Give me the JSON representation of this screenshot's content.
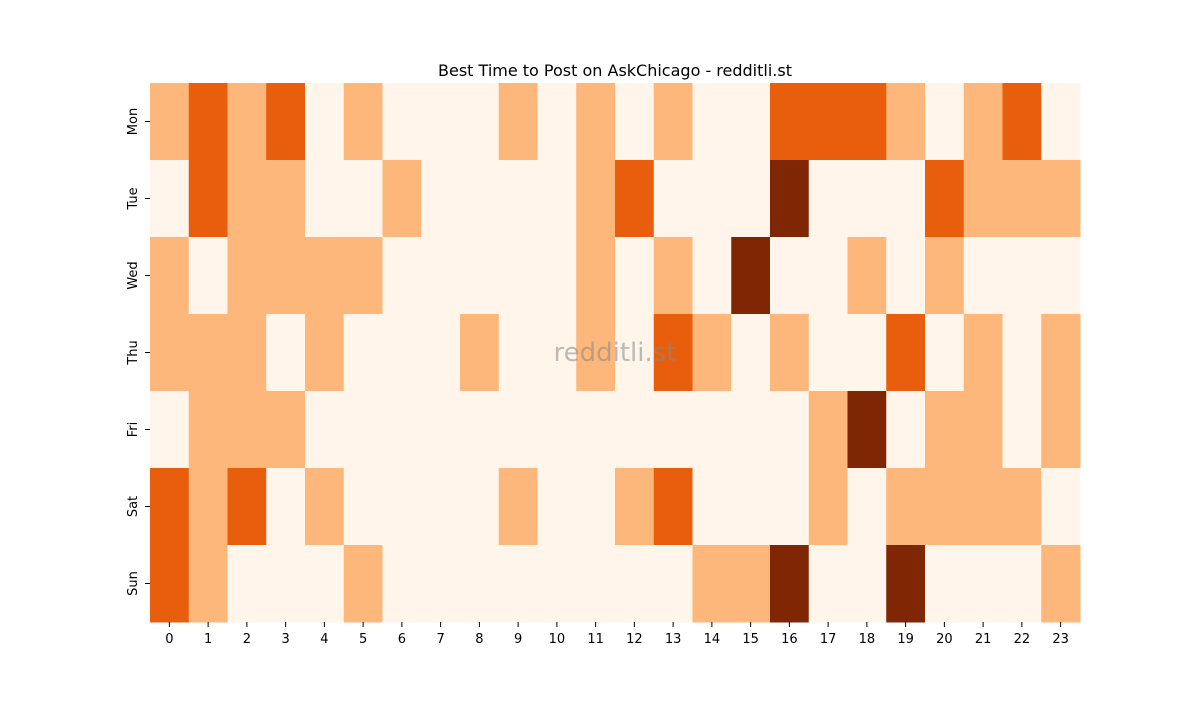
{
  "chart_data": {
    "type": "heatmap",
    "title": "Best Time to Post on AskChicago - redditli.st",
    "watermark": "redditli.st",
    "x_tick_labels": [
      "0",
      "1",
      "2",
      "3",
      "4",
      "5",
      "6",
      "7",
      "8",
      "9",
      "10",
      "11",
      "12",
      "13",
      "14",
      "15",
      "16",
      "17",
      "18",
      "19",
      "20",
      "21",
      "22",
      "23"
    ],
    "y_tick_labels": [
      "Mon",
      "Tue",
      "Wed",
      "Thu",
      "Fri",
      "Sat",
      "Sun"
    ],
    "value_levels": [
      "#fff5eb",
      "#fdb77a",
      "#e95e0d",
      "#7f2704"
    ],
    "values": [
      [
        1,
        2,
        1,
        2,
        0,
        1,
        0,
        0,
        0,
        1,
        0,
        1,
        0,
        1,
        0,
        0,
        2,
        2,
        2,
        1,
        0,
        1,
        2,
        0
      ],
      [
        0,
        2,
        1,
        1,
        0,
        0,
        1,
        0,
        0,
        0,
        0,
        1,
        2,
        0,
        0,
        0,
        3,
        0,
        0,
        0,
        2,
        1,
        1,
        1
      ],
      [
        1,
        0,
        1,
        1,
        1,
        1,
        0,
        0,
        0,
        0,
        0,
        1,
        0,
        1,
        0,
        3,
        0,
        0,
        1,
        0,
        1,
        0,
        0,
        0
      ],
      [
        1,
        1,
        1,
        0,
        1,
        0,
        0,
        0,
        1,
        0,
        0,
        1,
        0,
        2,
        1,
        0,
        1,
        0,
        0,
        2,
        0,
        1,
        0,
        1
      ],
      [
        0,
        1,
        1,
        1,
        0,
        0,
        0,
        0,
        0,
        0,
        0,
        0,
        0,
        0,
        0,
        0,
        0,
        1,
        3,
        0,
        1,
        1,
        0,
        1
      ],
      [
        2,
        1,
        2,
        0,
        1,
        0,
        0,
        0,
        0,
        1,
        0,
        0,
        1,
        2,
        0,
        0,
        0,
        1,
        0,
        1,
        1,
        1,
        1,
        0
      ],
      [
        2,
        1,
        0,
        0,
        0,
        1,
        0,
        0,
        0,
        0,
        0,
        0,
        0,
        0,
        1,
        1,
        3,
        0,
        0,
        3,
        0,
        0,
        0,
        1
      ]
    ]
  }
}
